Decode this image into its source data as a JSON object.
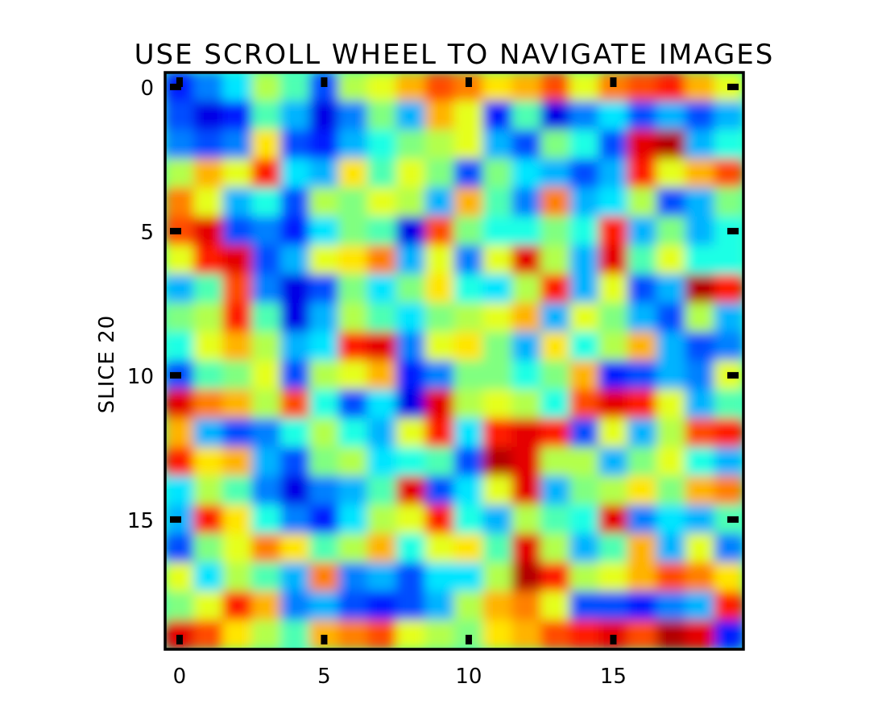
{
  "chart_data": {
    "type": "heatmap",
    "title": "USE SCROLL WHEEL TO NAVIGATE IMAGES",
    "xlabel": "",
    "ylabel": "SLICE 20",
    "colormap": "jet",
    "value_range": [
      0,
      1
    ],
    "rows": 20,
    "cols": 20,
    "xlim": [
      -0.5,
      19.5
    ],
    "ylim": [
      19.5,
      -0.5
    ],
    "x_ticks": [
      0,
      5,
      10,
      15
    ],
    "y_ticks": [
      0,
      5,
      10,
      15
    ],
    "x_tick_labels": [
      "0",
      "5",
      "10",
      "15"
    ],
    "y_tick_labels": [
      "0",
      "5",
      "10",
      "15"
    ],
    "grid": false,
    "values": [
      [
        0.15,
        0.25,
        0.35,
        0.55,
        0.45,
        0.2,
        0.55,
        0.6,
        0.7,
        0.8,
        0.75,
        0.65,
        0.7,
        0.8,
        0.6,
        0.75,
        0.8,
        0.85,
        0.7,
        0.6
      ],
      [
        0.2,
        0.1,
        0.15,
        0.45,
        0.3,
        0.1,
        0.25,
        0.5,
        0.3,
        0.7,
        0.6,
        0.15,
        0.45,
        0.1,
        0.25,
        0.35,
        0.2,
        0.3,
        0.2,
        0.3
      ],
      [
        0.25,
        0.2,
        0.25,
        0.65,
        0.2,
        0.15,
        0.3,
        0.4,
        0.5,
        0.55,
        0.6,
        0.3,
        0.2,
        0.5,
        0.4,
        0.2,
        0.9,
        0.95,
        0.3,
        0.4
      ],
      [
        0.55,
        0.7,
        0.6,
        0.85,
        0.35,
        0.3,
        0.65,
        0.45,
        0.6,
        0.5,
        0.2,
        0.5,
        0.35,
        0.3,
        0.2,
        0.3,
        0.85,
        0.6,
        0.7,
        0.8
      ],
      [
        0.75,
        0.6,
        0.3,
        0.4,
        0.2,
        0.55,
        0.5,
        0.6,
        0.55,
        0.3,
        0.7,
        0.45,
        0.25,
        0.75,
        0.3,
        0.35,
        0.55,
        0.2,
        0.3,
        0.5
      ],
      [
        0.8,
        0.9,
        0.2,
        0.25,
        0.15,
        0.35,
        0.5,
        0.45,
        0.1,
        0.8,
        0.5,
        0.4,
        0.4,
        0.5,
        0.4,
        0.85,
        0.3,
        0.5,
        0.3,
        0.4
      ],
      [
        0.6,
        0.85,
        0.9,
        0.2,
        0.3,
        0.6,
        0.65,
        0.75,
        0.3,
        0.6,
        0.25,
        0.6,
        0.9,
        0.55,
        0.3,
        0.9,
        0.45,
        0.6,
        0.4,
        0.4
      ],
      [
        0.3,
        0.45,
        0.8,
        0.25,
        0.1,
        0.2,
        0.5,
        0.35,
        0.5,
        0.65,
        0.4,
        0.35,
        0.55,
        0.85,
        0.3,
        0.6,
        0.2,
        0.3,
        0.95,
        0.85
      ],
      [
        0.5,
        0.55,
        0.85,
        0.45,
        0.1,
        0.3,
        0.55,
        0.45,
        0.35,
        0.5,
        0.55,
        0.6,
        0.7,
        0.3,
        0.6,
        0.5,
        0.3,
        0.2,
        0.55,
        0.3
      ],
      [
        0.4,
        0.6,
        0.7,
        0.55,
        0.3,
        0.35,
        0.85,
        0.9,
        0.25,
        0.6,
        0.65,
        0.5,
        0.3,
        0.65,
        0.4,
        0.55,
        0.7,
        0.3,
        0.2,
        0.25
      ],
      [
        0.2,
        0.45,
        0.5,
        0.6,
        0.2,
        0.55,
        0.6,
        0.7,
        0.15,
        0.25,
        0.5,
        0.5,
        0.4,
        0.5,
        0.7,
        0.15,
        0.2,
        0.3,
        0.25,
        0.6
      ],
      [
        0.9,
        0.75,
        0.7,
        0.55,
        0.8,
        0.4,
        0.2,
        0.35,
        0.1,
        0.9,
        0.55,
        0.6,
        0.55,
        0.4,
        0.8,
        0.9,
        0.85,
        0.6,
        0.3,
        0.45
      ],
      [
        0.7,
        0.3,
        0.2,
        0.25,
        0.4,
        0.55,
        0.4,
        0.3,
        0.6,
        0.85,
        0.35,
        0.85,
        0.9,
        0.85,
        0.2,
        0.6,
        0.3,
        0.55,
        0.8,
        0.85
      ],
      [
        0.85,
        0.65,
        0.7,
        0.3,
        0.2,
        0.5,
        0.55,
        0.35,
        0.4,
        0.45,
        0.2,
        0.95,
        0.9,
        0.55,
        0.55,
        0.3,
        0.5,
        0.6,
        0.4,
        0.3
      ],
      [
        0.35,
        0.55,
        0.45,
        0.25,
        0.1,
        0.25,
        0.3,
        0.45,
        0.9,
        0.2,
        0.35,
        0.6,
        0.9,
        0.3,
        0.5,
        0.55,
        0.65,
        0.5,
        0.7,
        0.75
      ],
      [
        0.3,
        0.85,
        0.65,
        0.4,
        0.25,
        0.15,
        0.35,
        0.55,
        0.6,
        0.85,
        0.4,
        0.3,
        0.55,
        0.45,
        0.4,
        0.9,
        0.25,
        0.35,
        0.3,
        0.45
      ],
      [
        0.2,
        0.5,
        0.6,
        0.75,
        0.65,
        0.45,
        0.55,
        0.7,
        0.4,
        0.6,
        0.65,
        0.45,
        0.9,
        0.55,
        0.3,
        0.45,
        0.7,
        0.3,
        0.6,
        0.25
      ],
      [
        0.6,
        0.35,
        0.55,
        0.45,
        0.3,
        0.75,
        0.25,
        0.3,
        0.2,
        0.35,
        0.35,
        0.55,
        0.95,
        0.85,
        0.55,
        0.6,
        0.7,
        0.8,
        0.75,
        0.65
      ],
      [
        0.5,
        0.6,
        0.85,
        0.7,
        0.25,
        0.3,
        0.2,
        0.15,
        0.2,
        0.3,
        0.55,
        0.7,
        0.75,
        0.6,
        0.2,
        0.2,
        0.15,
        0.25,
        0.3,
        0.85
      ],
      [
        0.9,
        0.8,
        0.65,
        0.55,
        0.45,
        0.7,
        0.75,
        0.8,
        0.6,
        0.55,
        0.5,
        0.65,
        0.7,
        0.8,
        0.85,
        0.9,
        0.8,
        0.95,
        0.9,
        0.15
      ]
    ]
  }
}
